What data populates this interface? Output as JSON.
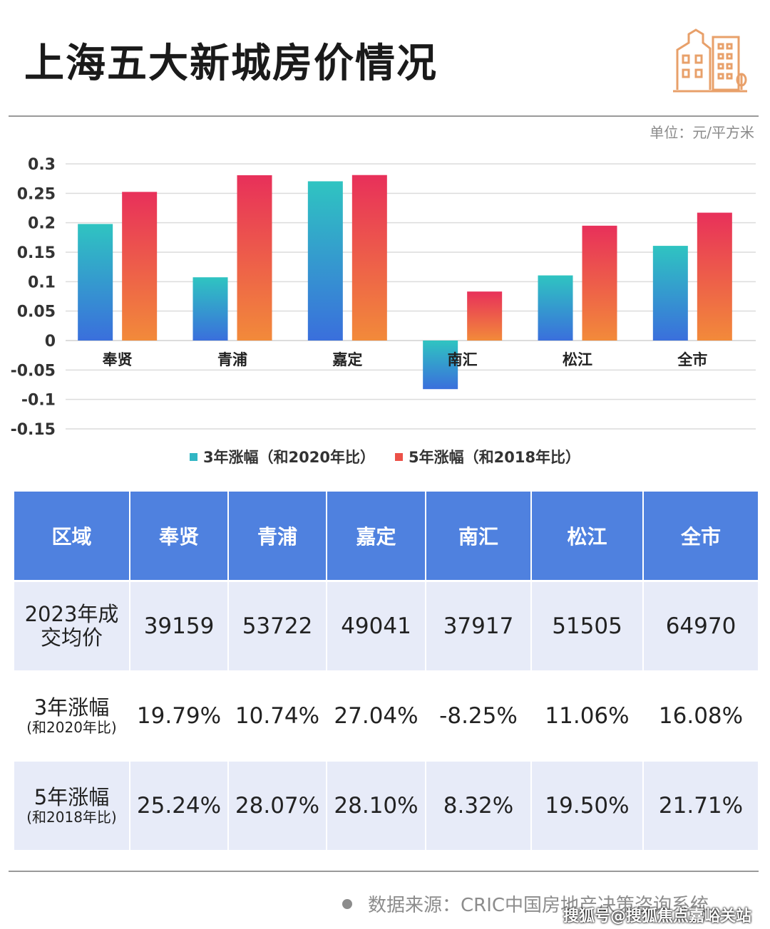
{
  "header": {
    "title": "上海五大新城房价情况",
    "unit": "单位：元/平方米"
  },
  "chart_data": {
    "type": "bar",
    "categories": [
      "奉贤",
      "青浦",
      "嘉定",
      "南汇",
      "松江",
      "全市"
    ],
    "series": [
      {
        "name": "3年涨幅（和2020年比）",
        "values": [
          0.1979,
          0.1074,
          0.2704,
          -0.0825,
          0.1106,
          0.1608
        ],
        "color": "#31b6c4"
      },
      {
        "name": "5年涨幅（和2018年比）",
        "values": [
          0.2524,
          0.2807,
          0.281,
          0.0832,
          0.195,
          0.2171
        ],
        "color": "#ec5148"
      }
    ],
    "ylim": [
      -0.15,
      0.3
    ],
    "yticks": [
      0.3,
      0.25,
      0.2,
      0.15,
      0.1,
      0.05,
      0,
      -0.05,
      -0.1,
      -0.15
    ],
    "ytick_labels": [
      "0.3",
      "0.25",
      "0.2",
      "0.15",
      "0.1",
      "0.05",
      "0",
      "-0.05",
      "-0.1",
      "-0.15"
    ],
    "grid": true,
    "legend_position": "bottom-center"
  },
  "table": {
    "headers": [
      "区域",
      "奉贤",
      "青浦",
      "嘉定",
      "南汇",
      "松江",
      "全市"
    ],
    "rows": [
      {
        "label_main": "2023年成",
        "label_sub": "交均价",
        "values": [
          "39159",
          "53722",
          "49041",
          "37917",
          "51505",
          "64970"
        ]
      },
      {
        "label_main": "3年涨幅",
        "label_sub": "(和2020年比)",
        "values": [
          "19.79%",
          "10.74%",
          "27.04%",
          "-8.25%",
          "11.06%",
          "16.08%"
        ]
      },
      {
        "label_main": "5年涨幅",
        "label_sub": "(和2018年比)",
        "values": [
          "25.24%",
          "28.07%",
          "28.10%",
          "8.32%",
          "19.50%",
          "21.71%"
        ]
      }
    ],
    "highlight_color": "#e02b2b"
  },
  "footer": {
    "source": "数据来源：CRIC中国房地产决策咨询系统",
    "watermark": "搜狐号@搜狐焦点嘉峪关站"
  }
}
